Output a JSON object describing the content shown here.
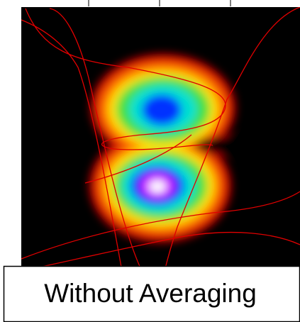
{
  "label": "Without Averaging"
}
